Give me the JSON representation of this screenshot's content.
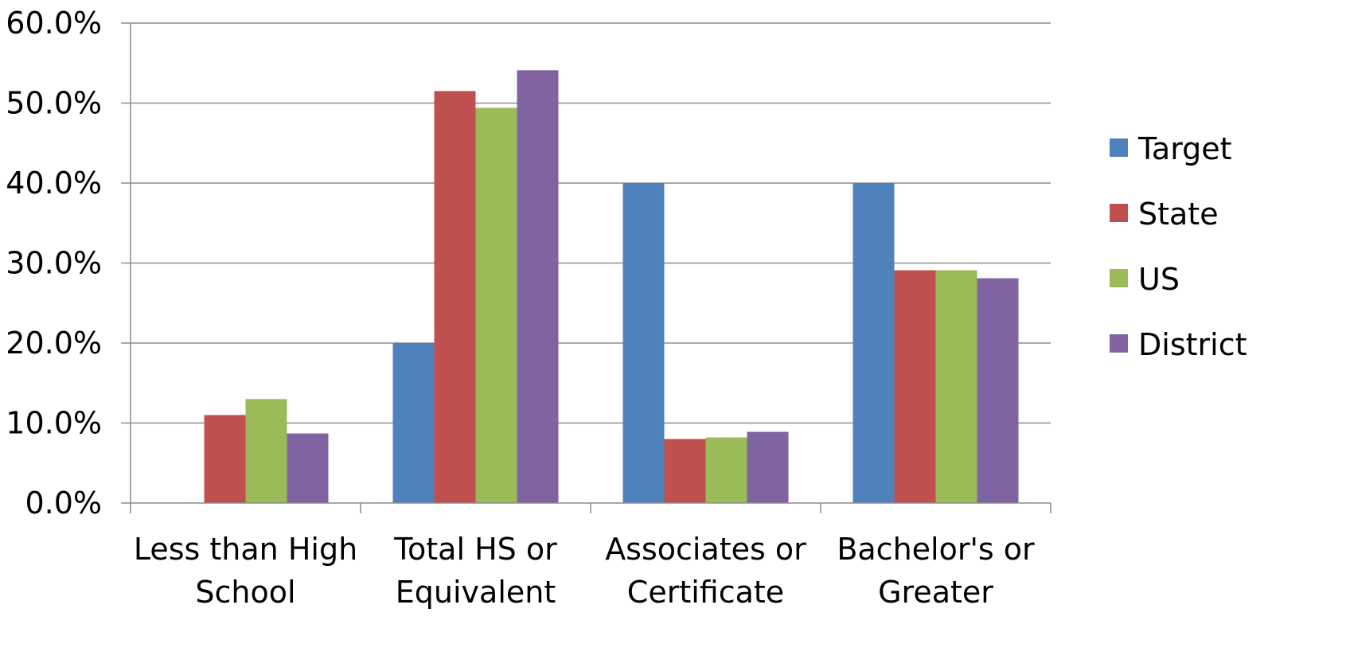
{
  "chart_data": {
    "type": "bar",
    "title": "",
    "xlabel": "",
    "ylabel": "",
    "categories": [
      [
        "Less than High",
        "School"
      ],
      [
        "Total HS or",
        "Equivalent"
      ],
      [
        "Associates or",
        "Certificate"
      ],
      [
        "Bachelor's or",
        "Greater"
      ]
    ],
    "series": [
      {
        "name": "Target",
        "color": "#4F81BD",
        "values": [
          0.0,
          20.0,
          40.0,
          40.0
        ]
      },
      {
        "name": "State",
        "color": "#C0504D",
        "values": [
          11.0,
          51.5,
          8.0,
          29.1
        ]
      },
      {
        "name": "US",
        "color": "#9BBB59",
        "values": [
          13.0,
          49.4,
          8.2,
          29.1
        ]
      },
      {
        "name": "District",
        "color": "#8064A2",
        "values": [
          8.7,
          54.1,
          8.9,
          28.1
        ]
      }
    ],
    "ylim": [
      0,
      60
    ],
    "yticks": [
      "0.0%",
      "10.0%",
      "20.0%",
      "30.0%",
      "40.0%",
      "50.0%",
      "60.0%"
    ],
    "grid": true,
    "legend": "right"
  }
}
